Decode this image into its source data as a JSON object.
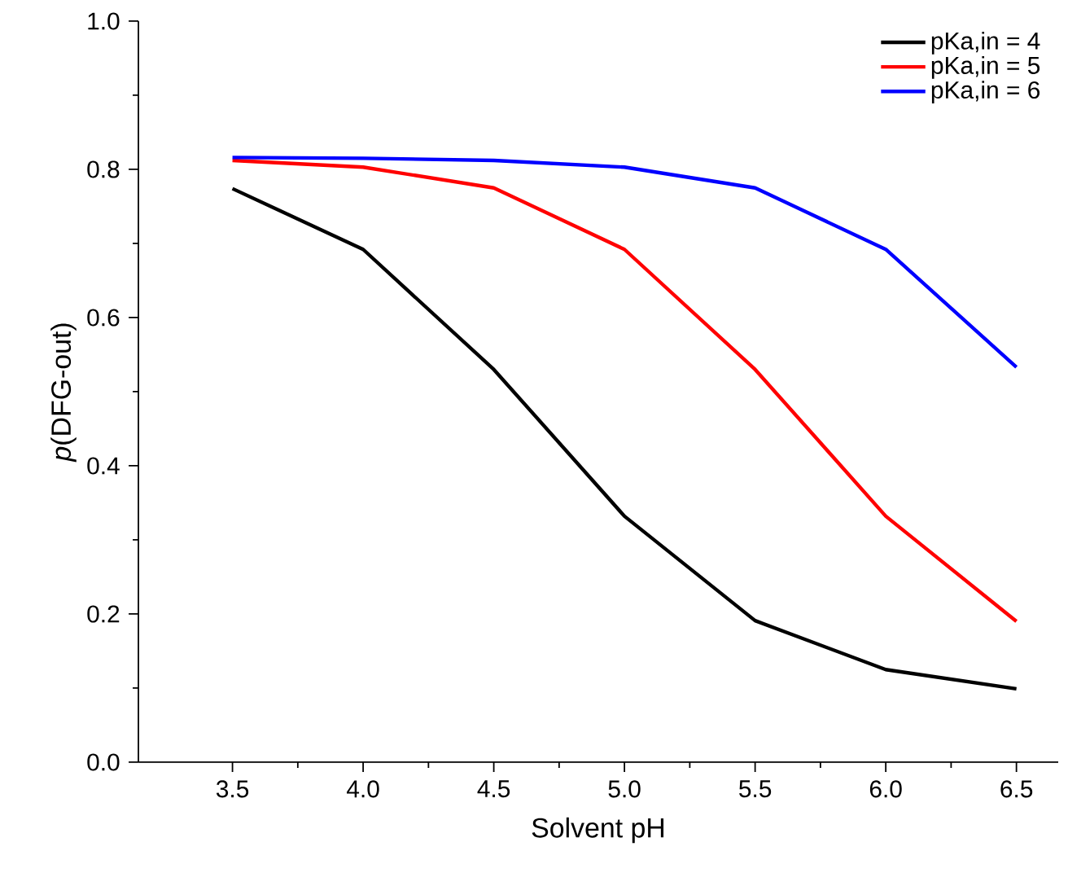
{
  "chart_data": {
    "type": "line",
    "xlabel": "Solvent pH",
    "ylabel": "*p*(DFG-out)",
    "x": [
      3.5,
      4.0,
      4.5,
      5.0,
      5.5,
      6.0,
      6.5
    ],
    "series": [
      {
        "name": "pKa,in = 4",
        "color": "#000000",
        "values": [
          0.774,
          0.692,
          0.53,
          0.332,
          0.191,
          0.125,
          0.099
        ]
      },
      {
        "name": "pKa,in = 5",
        "color": "#ff0000",
        "values": [
          0.812,
          0.803,
          0.775,
          0.692,
          0.53,
          0.332,
          0.19
        ]
      },
      {
        "name": "pKa,in = 6",
        "color": "#0000ff",
        "values": [
          0.816,
          0.815,
          0.812,
          0.803,
          0.775,
          0.692,
          0.533
        ]
      }
    ],
    "xlim": [
      3.14,
      6.66
    ],
    "ylim": [
      0,
      1.0
    ],
    "xticks": [
      {
        "value": 3.5,
        "label": "3.5"
      },
      {
        "value": 4.0,
        "label": "4.0"
      },
      {
        "value": 4.5,
        "label": "4.5"
      },
      {
        "value": 5.0,
        "label": "5.0"
      },
      {
        "value": 5.5,
        "label": "5.5"
      },
      {
        "value": 6.0,
        "label": "6.0"
      },
      {
        "value": 6.5,
        "label": "6.5"
      }
    ],
    "yticks": [
      {
        "value": 0,
        "label": "0.0"
      },
      {
        "value": 0.2,
        "label": "0.2"
      },
      {
        "value": 0.4,
        "label": "0.4"
      },
      {
        "value": 0.6,
        "label": "0.6"
      },
      {
        "value": 0.8,
        "label": "0.8"
      },
      {
        "value": 1.0,
        "label": "1.0"
      }
    ],
    "legend": "top right",
    "grid": false,
    "marker": "none",
    "line_style": "solid"
  }
}
